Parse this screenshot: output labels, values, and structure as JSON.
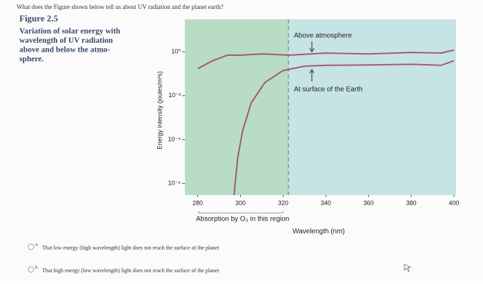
{
  "question": "What does the Figure shown below tell us about UV radiation and the planet earth?",
  "figure": {
    "number": "Figure 2.5",
    "caption_lines": [
      "Variation of solar energy with",
      "wavelength of UV radiation",
      "above and below the atmo-",
      "sphere."
    ]
  },
  "options": [
    {
      "letter": "a.",
      "text": "That low energy (high wavelength) light does not reach the surface of the planet"
    },
    {
      "letter": "b.",
      "text": "That high energy (low wavelength) light does not reach the surface of the planet"
    }
  ],
  "chart_data": {
    "type": "line",
    "xlabel": "Wavelength (nm)",
    "ylabel": "Energy intensity (joules/m²s)",
    "annotations": [
      "Above atmosphere",
      "At surface of the Earth",
      "Absorption by O₃ in this region"
    ],
    "log_y": true,
    "xlim": [
      274,
      401
    ],
    "ylim": [
      3e-07,
      30
    ],
    "xticks": [
      280,
      300,
      320,
      340,
      360,
      380,
      400
    ],
    "yticks": [
      {
        "value": 1,
        "label": "10⁰"
      },
      {
        "value": 0.01,
        "label": "10⁻²"
      },
      {
        "value": 0.0001,
        "label": "10⁻⁴"
      },
      {
        "value": 1e-06,
        "label": "10⁻⁶"
      }
    ],
    "series": [
      {
        "name": "Above atmosphere",
        "color": "#a3557a",
        "x": [
          280,
          287,
          294,
          300,
          310,
          323,
          340,
          360,
          380,
          394,
          400
        ],
        "values": [
          0.17,
          0.39,
          0.7,
          0.7,
          0.8,
          0.7,
          0.87,
          0.8,
          0.93,
          0.87,
          1.2
        ]
      },
      {
        "name": "At surface of the Earth",
        "color": "#a3557a",
        "x": [
          297,
          298.7,
          301,
          305,
          311.5,
          320,
          330,
          340,
          360,
          380,
          394,
          400
        ],
        "values": [
          3e-07,
          1.4e-05,
          0.00025,
          0.0046,
          0.04,
          0.14,
          0.22,
          0.24,
          0.25,
          0.27,
          0.24,
          0.39
        ]
      }
    ]
  }
}
